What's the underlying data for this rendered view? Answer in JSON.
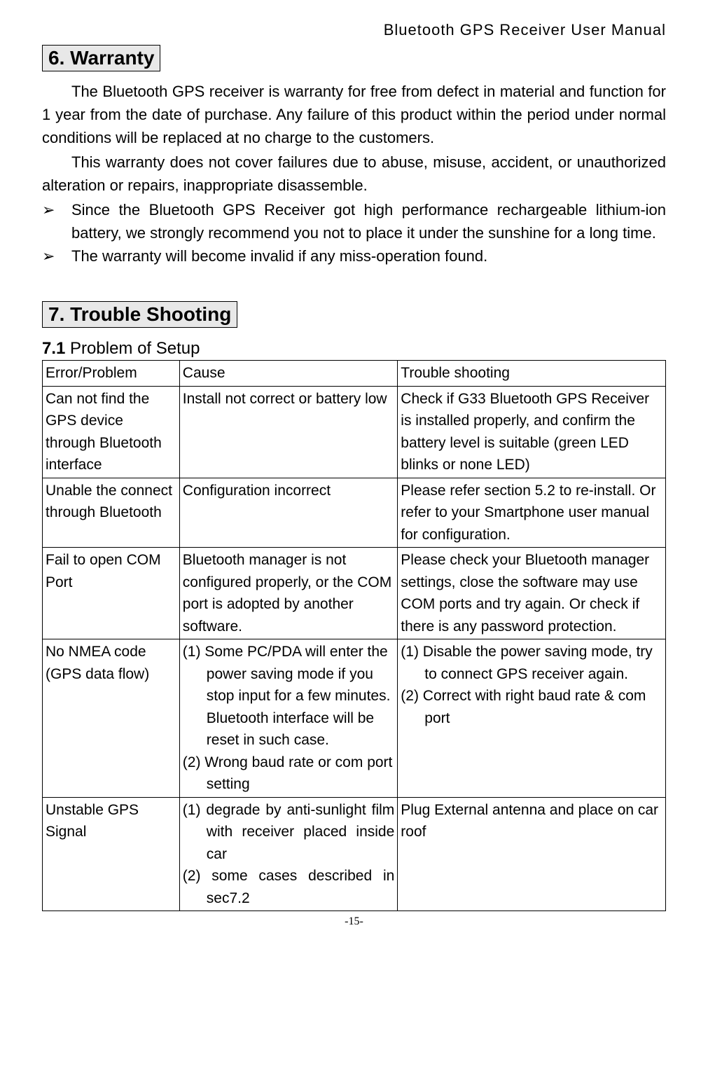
{
  "header": {
    "title": "Bluetooth GPS Receiver User Manual"
  },
  "section6": {
    "title": "6. Warranty",
    "para1": "The Bluetooth GPS receiver is warranty for free from defect in material and function for 1 year from the date of purchase. Any failure of this product within the period under normal conditions will be replaced at no charge to the customers.",
    "para2": "This warranty does not cover failures due to abuse, misuse, accident, or unauthorized alteration or repairs, inappropriate disassemble.",
    "bullets": [
      "Since the Bluetooth GPS Receiver got high performance rechargeable lithium-ion battery, we strongly recommend you not to place it under the sunshine for a long time.",
      "The warranty will become invalid if any miss-operation found."
    ]
  },
  "section7": {
    "title": "7. Trouble Shooting",
    "sub_num": "7.1",
    "sub_text": " Problem of Setup",
    "table": {
      "headers": {
        "c1": "Error/Problem",
        "c2": "Cause",
        "c3": "Trouble shooting"
      },
      "rows": [
        {
          "problem": "Can not find the GPS device through Bluetooth interface",
          "cause": "Install not correct or battery low",
          "fix": "Check if G33 Bluetooth GPS Receiver is installed properly, and confirm the battery level is suitable (green LED blinks or none LED)"
        },
        {
          "problem": "Unable the connect through Bluetooth",
          "cause": "Configuration incorrect",
          "fix": "Please refer section 5.2 to re-install. Or refer to your Smartphone user manual for configuration."
        },
        {
          "problem": "Fail to open COM Port",
          "cause": "Bluetooth manager is not configured properly, or the COM port is adopted by another software.",
          "fix": "Please check your Bluetooth manager settings, close the software may use COM ports and try again. Or check if there is any password protection."
        },
        {
          "problem": "No NMEA code (GPS data flow)",
          "cause_items": [
            "(1) Some PC/PDA will enter the power saving mode if you stop input for a few minutes. Bluetooth interface will be reset in such case.",
            "(2) Wrong baud rate or com port setting"
          ],
          "fix_items": [
            "(1) Disable the power saving mode, try to connect GPS receiver again.",
            "(2) Correct with right baud rate & com port"
          ]
        },
        {
          "problem": "Unstable GPS Signal",
          "cause_items": [
            "(1) degrade by anti-sunlight film with receiver placed inside car",
            "(2) some cases described in sec7.2"
          ],
          "fix": "Plug External antenna and place on car roof"
        }
      ]
    }
  },
  "footer": {
    "page": "-15-"
  }
}
